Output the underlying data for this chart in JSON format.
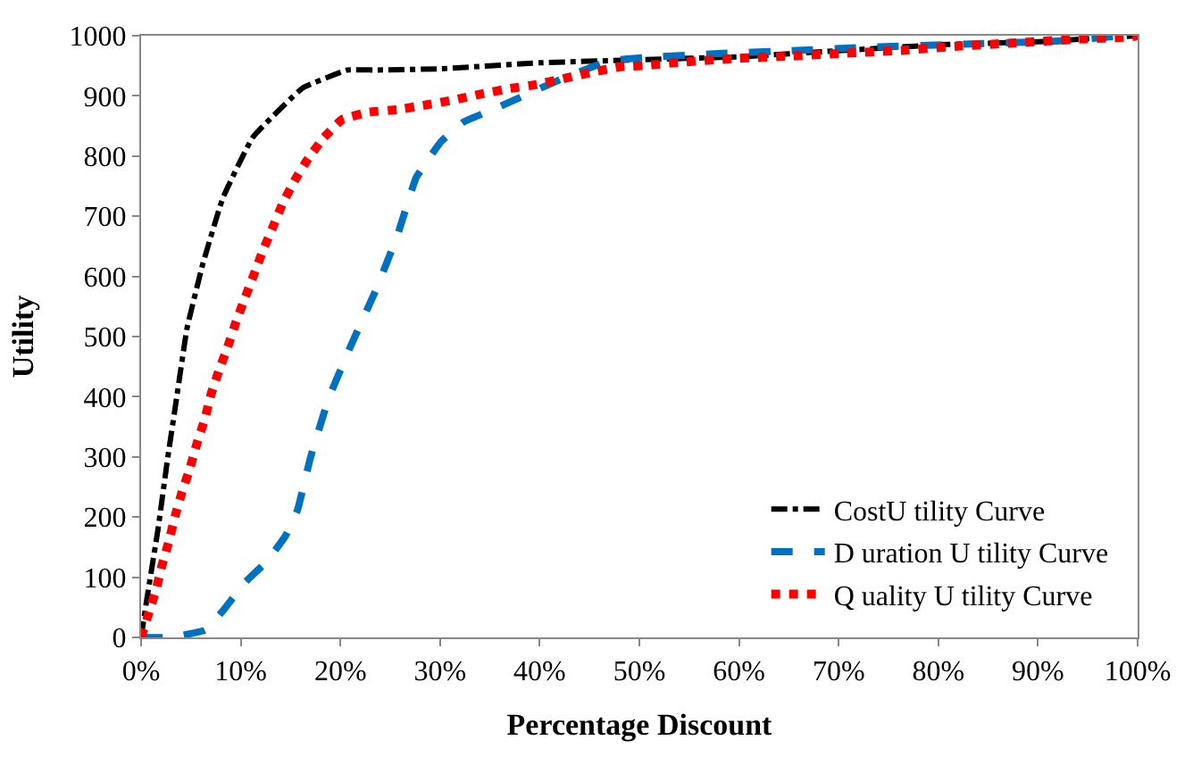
{
  "chart_data": {
    "type": "line",
    "xlabel": "Percentage Discount",
    "ylabel": "Utility",
    "xlim": [
      0,
      100
    ],
    "ylim": [
      0,
      1000
    ],
    "xticks": [
      {
        "value": 0,
        "label": "0%"
      },
      {
        "value": 10,
        "label": "10%"
      },
      {
        "value": 20,
        "label": "20%"
      },
      {
        "value": 30,
        "label": "30%"
      },
      {
        "value": 40,
        "label": "40%"
      },
      {
        "value": 50,
        "label": "50%"
      },
      {
        "value": 60,
        "label": "60%"
      },
      {
        "value": 70,
        "label": "70%"
      },
      {
        "value": 80,
        "label": "80%"
      },
      {
        "value": 90,
        "label": "90%"
      },
      {
        "value": 100,
        "label": "100%"
      }
    ],
    "yticks": [
      0,
      100,
      200,
      300,
      400,
      500,
      600,
      700,
      800,
      900,
      1000
    ],
    "legend": "bottom right",
    "series": [
      {
        "name": "CostU tility Curve",
        "color": "#000000",
        "line_style": "dashdot",
        "x": [
          0,
          0.6,
          1.7,
          2.6,
          3.6,
          4.6,
          6.2,
          8.2,
          11.2,
          16.2,
          20.7,
          23.5,
          30,
          40,
          50,
          60,
          70,
          80,
          90,
          100
        ],
        "values": [
          0,
          66,
          180,
          290,
          402,
          513,
          621,
          730,
          831,
          913,
          943,
          943,
          945,
          955,
          960,
          965,
          975,
          985,
          990,
          1000
        ]
      },
      {
        "name": "D uration U tility Curve",
        "color": "#0070c0",
        "line_style": "dashed",
        "x": [
          0,
          2.9,
          6.4,
          8.2,
          10.4,
          12.6,
          14.5,
          15.7,
          17,
          18.8,
          21,
          23.5,
          25.7,
          27.6,
          30.1,
          32.3,
          35.4,
          41.9,
          46.9,
          50.7,
          57.5,
          65,
          73.1,
          82.5,
          91.9,
          98,
          100
        ],
        "values": [
          0,
          0,
          12,
          44,
          91,
          126,
          169,
          212,
          299,
          396,
          483,
          575,
          667,
          764,
          824,
          856,
          878,
          926,
          958,
          964,
          970,
          975,
          981,
          986,
          991,
          999,
          1000
        ]
      },
      {
        "name": "Q uality U tility Curve",
        "color": "#ff0000",
        "line_style": "dotted",
        "x": [
          0,
          0.75,
          1.5,
          2.1,
          2.8,
          3.4,
          4.1,
          4.9,
          5.6,
          6.4,
          7,
          7.8,
          8.7,
          9.5,
          10.4,
          11.3,
          12.2,
          13.2,
          14.2,
          15.4,
          16.7,
          18.3,
          20.2,
          22.9,
          25.7,
          28.6,
          31.3,
          34.1,
          36.9,
          39.7,
          45.2,
          48,
          51,
          53.5,
          59.4,
          65,
          70.6,
          76.6,
          82.2,
          87.8,
          93.7,
          99.4,
          100
        ],
        "values": [
          0,
          39,
          79,
          120,
          160,
          201,
          241,
          281,
          322,
          363,
          403,
          443,
          483,
          523,
          563,
          602,
          642,
          681,
          721,
          759,
          794,
          830,
          861,
          873,
          877,
          885,
          893,
          903,
          912,
          919,
          939,
          948,
          951,
          955,
          962,
          966,
          971,
          976,
          983,
          988,
          994,
          998,
          1000
        ]
      }
    ]
  }
}
